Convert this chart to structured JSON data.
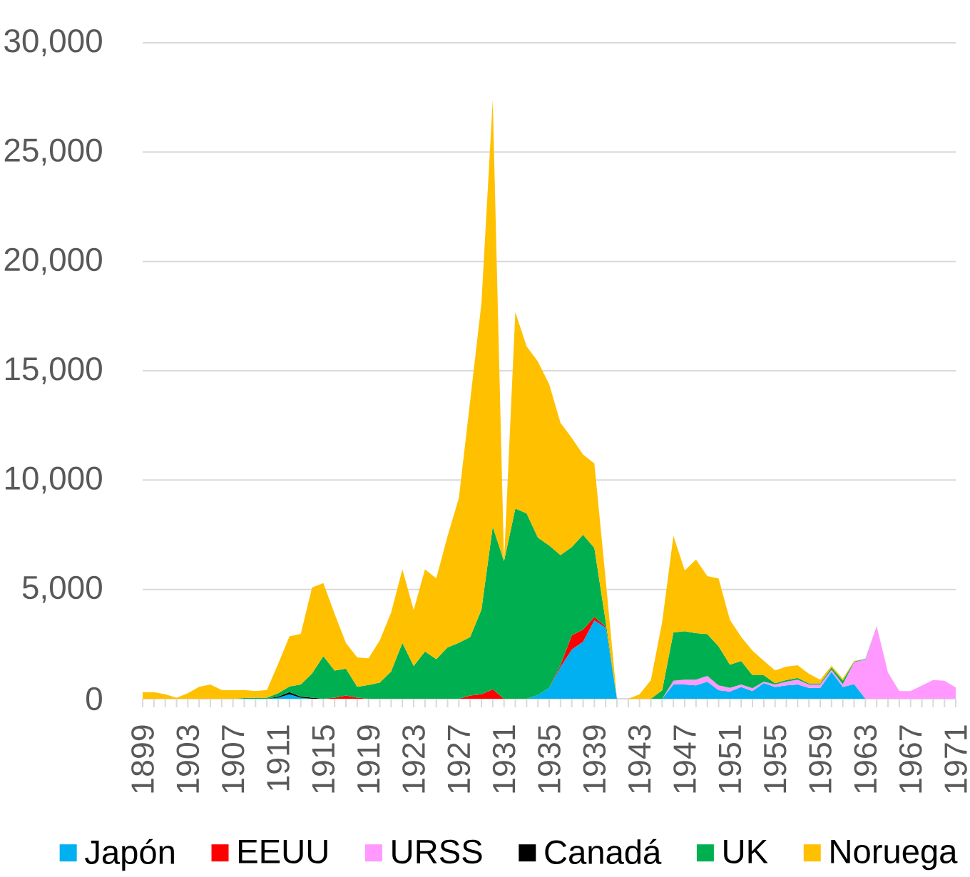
{
  "chart_data": {
    "type": "area",
    "stacked": true,
    "categories": [
      "1899",
      null,
      null,
      null,
      "1903",
      null,
      null,
      null,
      "1907",
      null,
      null,
      null,
      "1911",
      null,
      null,
      null,
      "1915",
      null,
      null,
      null,
      "1919",
      null,
      null,
      null,
      "1923",
      null,
      null,
      null,
      "1927",
      null,
      null,
      null,
      "1931",
      null,
      null,
      null,
      "1935",
      null,
      null,
      null,
      "1939",
      null,
      null,
      null,
      "1943",
      null,
      null,
      null,
      "1947",
      null,
      null,
      null,
      "1951",
      null,
      null,
      null,
      "1955",
      null,
      null,
      null,
      "1959",
      null,
      null,
      null,
      "1963",
      null,
      null,
      null,
      "1967",
      null,
      null,
      null,
      "1971"
    ],
    "series": [
      {
        "name": "Japón",
        "color": "#00b0f0",
        "values": [
          0,
          0,
          0,
          0,
          0,
          0,
          0,
          0,
          0,
          0,
          0,
          0,
          50,
          200,
          50,
          0,
          0,
          0,
          0,
          0,
          0,
          0,
          0,
          0,
          0,
          0,
          0,
          0,
          0,
          0,
          0,
          0,
          0,
          0,
          0,
          170,
          500,
          1450,
          2250,
          2610,
          3590,
          3250,
          0,
          0,
          0,
          0,
          0,
          650,
          650,
          610,
          780,
          390,
          330,
          540,
          350,
          720,
          540,
          610,
          650,
          500,
          500,
          1230,
          540,
          670,
          0,
          0,
          0,
          0,
          0,
          0,
          0,
          0,
          0
        ]
      },
      {
        "name": "EEUU",
        "color": "#ff0000",
        "values": [
          0,
          0,
          0,
          0,
          0,
          0,
          0,
          0,
          0,
          0,
          0,
          0,
          0,
          0,
          0,
          0,
          0,
          50,
          150,
          50,
          0,
          0,
          0,
          0,
          0,
          0,
          0,
          0,
          0,
          150,
          200,
          430,
          0,
          0,
          0,
          0,
          0,
          100,
          650,
          550,
          150,
          50,
          0,
          0,
          0,
          0,
          0,
          0,
          0,
          0,
          0,
          0,
          0,
          0,
          0,
          0,
          0,
          0,
          0,
          0,
          0,
          0,
          0,
          0,
          0,
          0,
          0,
          0,
          0,
          0,
          0,
          0,
          0
        ]
      },
      {
        "name": "URSS",
        "color": "#ff99ff",
        "values": [
          null,
          null,
          null,
          null,
          null,
          null,
          null,
          null,
          null,
          null,
          null,
          null,
          null,
          null,
          null,
          null,
          null,
          null,
          null,
          null,
          null,
          null,
          null,
          null,
          null,
          null,
          null,
          null,
          null,
          null,
          null,
          null,
          null,
          null,
          null,
          null,
          null,
          null,
          null,
          null,
          null,
          null,
          null,
          null,
          null,
          null,
          0,
          170,
          220,
          260,
          260,
          220,
          170,
          110,
          130,
          60,
          110,
          170,
          220,
          150,
          150,
          100,
          130,
          1000,
          1800,
          3320,
          1200,
          350,
          350,
          600,
          860,
          820,
          510
        ]
      },
      {
        "name": "Canadá",
        "color": "#000000",
        "values": [
          null,
          null,
          null,
          null,
          null,
          null,
          null,
          null,
          null,
          null,
          null,
          0,
          50,
          100,
          50,
          50,
          0,
          null,
          null,
          null,
          null,
          null,
          null,
          null,
          null,
          null,
          null,
          null,
          null,
          null,
          null,
          null,
          null,
          null,
          null,
          null,
          null,
          null,
          null,
          null,
          null,
          null,
          null,
          null,
          null,
          null,
          null,
          null,
          null,
          null,
          null,
          null,
          null,
          null,
          null,
          null,
          null,
          null,
          null,
          null,
          null,
          null,
          null,
          null,
          null,
          null,
          null,
          null,
          null,
          null,
          null,
          null,
          null
        ]
      },
      {
        "name": "UK",
        "color": "#00b050",
        "values": [
          0,
          0,
          0,
          0,
          0,
          0,
          0,
          0,
          0,
          30,
          50,
          50,
          150,
          260,
          550,
          1110,
          1950,
          1240,
          1230,
          500,
          630,
          740,
          1250,
          2550,
          1500,
          2160,
          1810,
          2350,
          2560,
          2670,
          3880,
          7440,
          6290,
          8700,
          8480,
          7200,
          6510,
          5020,
          4040,
          4340,
          3160,
          250,
          0,
          0,
          0,
          0,
          380,
          2210,
          2220,
          2130,
          1920,
          1790,
          1060,
          1080,
          600,
          300,
          60,
          80,
          80,
          50,
          50,
          100,
          160,
          30,
          30,
          0,
          0,
          0,
          0,
          0,
          0,
          0,
          0
        ]
      },
      {
        "name": "Noruega",
        "color": "#ffc000",
        "values": [
          300,
          300,
          200,
          50,
          250,
          550,
          650,
          400,
          390,
          370,
          300,
          350,
          1350,
          2290,
          2320,
          3930,
          3340,
          2590,
          1170,
          1340,
          1220,
          1930,
          2690,
          3370,
          2550,
          3760,
          3690,
          5090,
          6620,
          10800,
          14020,
          19530,
          0,
          8980,
          7640,
          8050,
          7370,
          6050,
          4990,
          3670,
          3860,
          1900,
          0,
          0,
          200,
          850,
          3120,
          4420,
          2780,
          3370,
          2650,
          3100,
          2050,
          1100,
          1120,
          660,
          590,
          610,
          580,
          440,
          170,
          80,
          90,
          30,
          0,
          0,
          0,
          0,
          0,
          0,
          0,
          0,
          0
        ]
      }
    ],
    "ylim": [
      0,
      30000
    ],
    "yticks": [
      0,
      {
        "value": 5000,
        "label": "5,000"
      },
      {
        "value": 10000,
        "label": "10,000"
      },
      {
        "value": 15000,
        "label": "15,000"
      },
      {
        "value": 20000,
        "label": "20,000"
      },
      {
        "value": 25000,
        "label": "25,000"
      },
      {
        "value": 30000,
        "label": "30,000"
      }
    ],
    "grid": "y",
    "legend": "bottom"
  }
}
